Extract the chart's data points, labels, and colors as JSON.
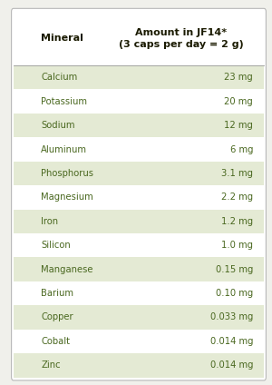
{
  "title_col1": "Mineral",
  "title_col2": "Amount in JF14*\n(3 caps per day = 2 g)",
  "minerals": [
    "Calcium",
    "Potassium",
    "Sodium",
    "Aluminum",
    "Phosphorus",
    "Magnesium",
    "Iron",
    "Silicon",
    "Manganese",
    "Barium",
    "Copper",
    "Cobalt",
    "Zinc"
  ],
  "amounts": [
    "23 mg",
    "20 mg",
    "12 mg",
    "6 mg",
    "3.1 mg",
    "2.2 mg",
    "1.2 mg",
    "1.0 mg",
    "0.15 mg",
    "0.10 mg",
    "0.033 mg",
    "0.014 mg",
    "0.014 mg"
  ],
  "row_shaded_color": "#e4ead4",
  "row_plain_color": "#ffffff",
  "header_bg": "#ffffff",
  "text_color": "#4a6820",
  "header_text_color": "#1a1a00",
  "fig_bg": "#f0f0eb",
  "border_color": "#b8b8b8",
  "separator_color": "#999999",
  "fig_width": 3.0,
  "fig_height": 4.24,
  "font_size": 7.2,
  "header_font_size": 8.0
}
